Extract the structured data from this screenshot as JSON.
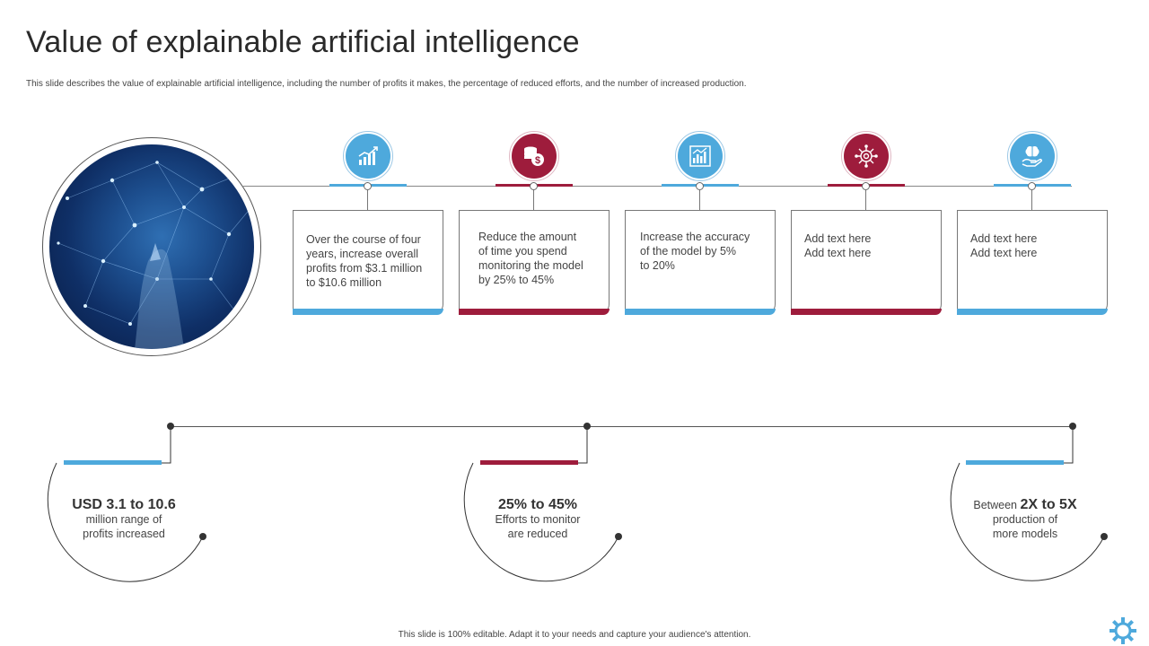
{
  "slide": {
    "title": "Value of explainable artificial intelligence",
    "subtitle": "This slide describes the value of explainable artificial intelligence,  including the number of profits it makes, the percentage of reduced efforts, and the number of increased production.",
    "footer": "This slide is 100% editable. Adapt it to your needs and capture your audience's attention."
  },
  "colors": {
    "blue": "#4ea9dc",
    "red": "#9e1c3c"
  },
  "steps": [
    {
      "icon": "growth-chart-icon",
      "color": "blue",
      "text": "Over the course of four\nyears, increase overall\nprofits from $3.1 million\nto $10.6 million"
    },
    {
      "icon": "dollar-coins-icon",
      "color": "red",
      "text": "Reduce the amount\nof time you spend\nmonitoring the model\nby 25% to 45%"
    },
    {
      "icon": "bar-chart-icon",
      "color": "blue",
      "text": "Increase the accuracy\nof the model by 5%\nto 20%"
    },
    {
      "icon": "gear-network-icon",
      "color": "red",
      "text": "Add text here\nAdd text here"
    },
    {
      "icon": "hand-brain-icon",
      "color": "blue",
      "text": "Add text here\nAdd text here"
    }
  ],
  "stats": [
    {
      "big": "USD 3.1 to 10.6",
      "line1": "million range of",
      "line2": "profits increased",
      "accent": "blue"
    },
    {
      "big": "25% to 45%",
      "line1": "Efforts to monitor",
      "line2": "are reduced",
      "accent": "red"
    },
    {
      "prefix": "Between ",
      "big": "2X to 5X",
      "line1": "production of",
      "line2": "more models",
      "accent": "blue"
    }
  ]
}
